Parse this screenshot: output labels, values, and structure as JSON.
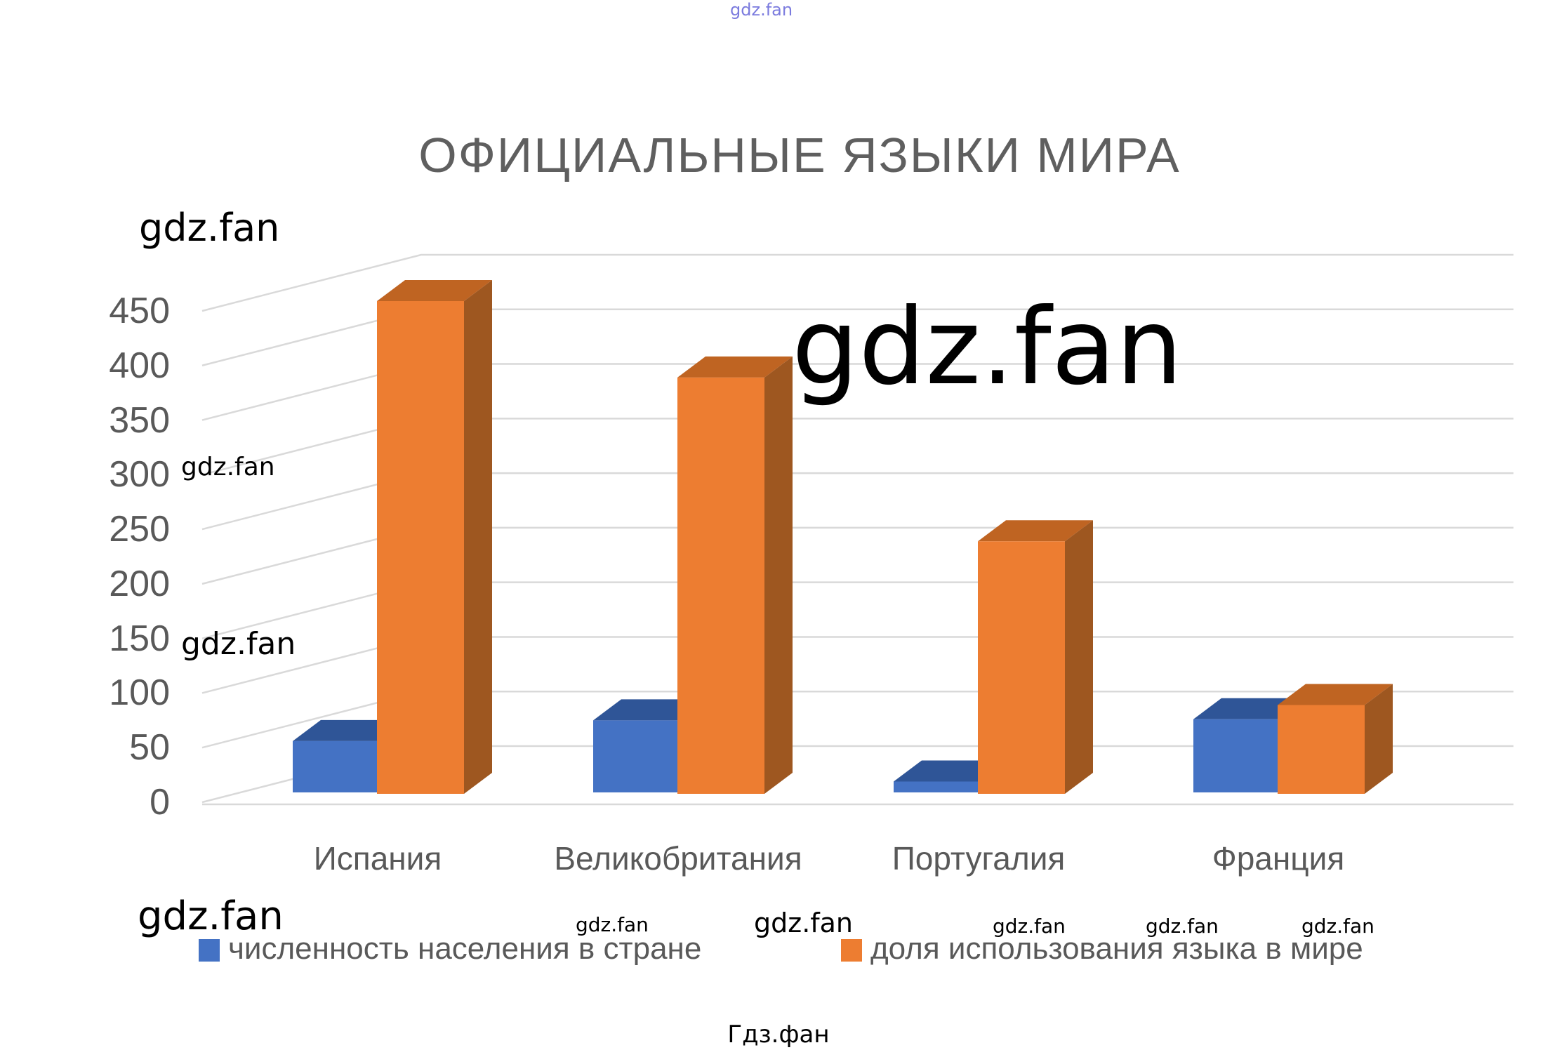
{
  "chart_data": {
    "type": "bar",
    "style": "3d-clustered",
    "title": "ОФИЦИАЛЬНЫЕ ЯЗЫКИ МИРА",
    "categories": [
      "Испания",
      "Великобритания",
      "Португалия",
      "Франция"
    ],
    "series": [
      {
        "name": "численность населения в стране",
        "color": "#4472C4",
        "top_color": "#2F5597",
        "side_color": "#35599B",
        "values": [
          47,
          66,
          10,
          67
        ]
      },
      {
        "name": "доля использования языка в мире",
        "color": "#ED7D31",
        "top_color": "#BF6422",
        "side_color": "#9E5720",
        "values": [
          450,
          380,
          230,
          80
        ]
      }
    ],
    "ylim": [
      0,
      450
    ],
    "ytick_step": 50,
    "ytick_labels": [
      "0",
      "50",
      "100",
      "150",
      "200",
      "250",
      "300",
      "350",
      "400",
      "450"
    ],
    "xlabel": "",
    "ylabel": "",
    "grid": true,
    "legend_position": "bottom"
  },
  "colors": {
    "gridline": "#D9D9D9",
    "axis_text": "#595959",
    "title_text": "#5F5F5F",
    "watermark_top": "#5B5BD6",
    "watermark": "#000000"
  },
  "watermarks": {
    "text": "gdz.fan",
    "footer": "Гдз.фан"
  }
}
